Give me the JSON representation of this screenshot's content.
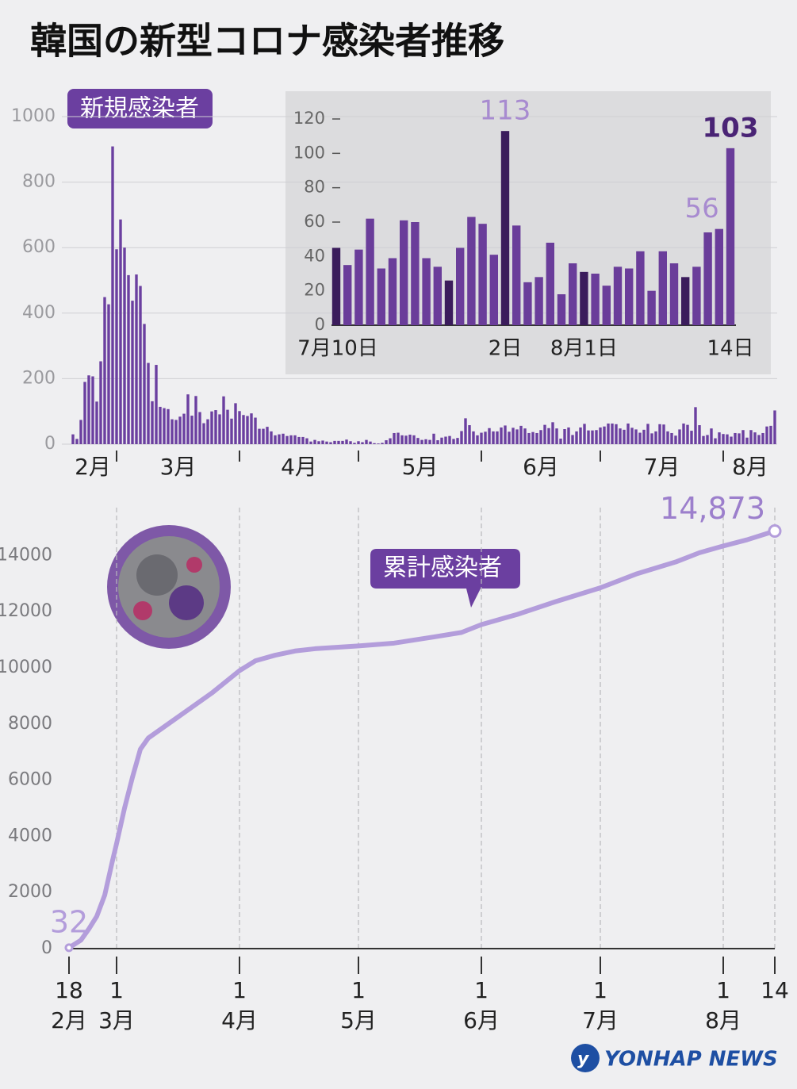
{
  "title": "韓国の新型コロナ感染者推移",
  "source": "YONHAP NEWS",
  "chart_data": [
    {
      "type": "bar",
      "label": "新規感染者",
      "color": "#6b3fa0",
      "x": [
        "02-19",
        "02-20",
        "02-21",
        "02-22",
        "02-23",
        "02-24",
        "02-25",
        "02-26",
        "02-27",
        "02-28",
        "02-29",
        "03-01",
        "03-02",
        "03-03",
        "03-04",
        "03-05",
        "03-06",
        "03-07",
        "03-08",
        "03-09",
        "03-10",
        "03-11",
        "03-12",
        "03-13",
        "03-14",
        "03-15",
        "03-16",
        "03-17",
        "03-18",
        "03-19",
        "03-20",
        "03-21",
        "03-22",
        "03-23",
        "03-24",
        "03-25",
        "03-26",
        "03-27",
        "03-28",
        "03-29",
        "03-30",
        "03-31",
        "04-01",
        "04-02",
        "04-03",
        "04-04",
        "04-05",
        "04-06",
        "04-07",
        "04-08",
        "04-09",
        "04-10",
        "04-11",
        "04-12",
        "04-13",
        "04-14",
        "04-15",
        "04-16",
        "04-17",
        "04-18",
        "04-19",
        "04-20",
        "04-21",
        "04-22",
        "04-23",
        "04-24",
        "04-25",
        "04-26",
        "04-27",
        "04-28",
        "04-29",
        "04-30",
        "05-01",
        "05-02",
        "05-03",
        "05-04",
        "05-05",
        "05-06",
        "05-07",
        "05-08",
        "05-09",
        "05-10",
        "05-11",
        "05-12",
        "05-13",
        "05-14",
        "05-15",
        "05-16",
        "05-17",
        "05-18",
        "05-19",
        "05-20",
        "05-21",
        "05-22",
        "05-23",
        "05-24",
        "05-25",
        "05-26",
        "05-27",
        "05-28",
        "05-29",
        "05-30",
        "05-31",
        "06-01",
        "06-02",
        "06-03",
        "06-04",
        "06-05",
        "06-06",
        "06-07",
        "06-08",
        "06-09",
        "06-10",
        "06-11",
        "06-12",
        "06-13",
        "06-14",
        "06-15",
        "06-16",
        "06-17",
        "06-18",
        "06-19",
        "06-20",
        "06-21",
        "06-22",
        "06-23",
        "06-24",
        "06-25",
        "06-26",
        "06-27",
        "06-28",
        "06-29",
        "06-30",
        "07-01",
        "07-02",
        "07-03",
        "07-04",
        "07-05",
        "07-06",
        "07-07",
        "07-08",
        "07-09",
        "07-10",
        "07-11",
        "07-12",
        "07-13",
        "07-14",
        "07-15",
        "07-16",
        "07-17",
        "07-18",
        "07-19",
        "07-20",
        "07-21",
        "07-22",
        "07-23",
        "07-24",
        "07-25",
        "07-26",
        "07-27",
        "07-28",
        "07-29",
        "07-30",
        "07-31",
        "08-01",
        "08-02",
        "08-03",
        "08-04",
        "08-05",
        "08-06",
        "08-07",
        "08-08",
        "08-09",
        "08-10",
        "08-11",
        "08-12",
        "08-13",
        "08-14"
      ],
      "values": [
        30,
        16,
        74,
        190,
        210,
        207,
        130,
        253,
        449,
        427,
        909,
        595,
        686,
        600,
        516,
        438,
        518,
        483,
        367,
        248,
        131,
        242,
        114,
        110,
        107,
        76,
        74,
        84,
        93,
        152,
        87,
        147,
        98,
        64,
        76,
        100,
        104,
        91,
        146,
        105,
        78,
        125,
        101,
        89,
        86,
        94,
        81,
        47,
        47,
        53,
        39,
        27,
        30,
        32,
        25,
        27,
        27,
        22,
        22,
        18,
        8,
        13,
        9,
        11,
        8,
        6,
        10,
        10,
        10,
        14,
        9,
        4,
        9,
        6,
        13,
        8,
        3,
        2,
        4,
        12,
        18,
        34,
        35,
        27,
        26,
        29,
        27,
        19,
        13,
        15,
        13,
        32,
        12,
        20,
        23,
        25,
        16,
        19,
        40,
        79,
        58,
        39,
        27,
        35,
        38,
        49,
        39,
        39,
        51,
        57,
        38,
        50,
        45,
        56,
        48,
        34,
        37,
        34,
        43,
        59,
        49,
        67,
        48,
        17,
        46,
        51,
        28,
        39,
        51,
        62,
        42,
        42,
        43,
        51,
        54,
        63,
        63,
        61,
        48,
        44,
        63,
        50,
        45,
        35,
        44,
        62,
        33,
        39,
        61,
        60,
        39,
        34,
        26,
        45,
        63,
        59,
        41,
        113,
        58,
        25,
        28,
        48,
        18,
        36,
        31,
        30,
        23,
        34,
        33,
        43,
        20,
        43,
        36,
        28,
        34,
        54,
        56,
        103
      ],
      "xlim": [
        "02-18",
        "08-14"
      ],
      "xticks": [
        "03-01",
        "04-01",
        "05-01",
        "06-01",
        "07-01",
        "08-01"
      ],
      "month_labels": [
        "2月",
        "3月",
        "4月",
        "5月",
        "6月",
        "7月",
        "8月"
      ],
      "ylim": [
        0,
        1000
      ],
      "yticks": [
        0,
        200,
        400,
        600,
        800,
        1000
      ],
      "grid": true
    },
    {
      "type": "bar",
      "categories": [
        "7月10日",
        null,
        null,
        null,
        null,
        null,
        null,
        null,
        null,
        null,
        null,
        null,
        null,
        null,
        null,
        "2日",
        null,
        null,
        null,
        null,
        null,
        null,
        "8月1日",
        null,
        null,
        null,
        null,
        null,
        null,
        null,
        null,
        null,
        null,
        null,
        null,
        "14日"
      ],
      "values": [
        45,
        35,
        44,
        62,
        33,
        39,
        61,
        60,
        39,
        34,
        26,
        45,
        63,
        59,
        41,
        113,
        58,
        25,
        28,
        48,
        18,
        36,
        31,
        30,
        23,
        34,
        33,
        43,
        20,
        43,
        36,
        28,
        34,
        54,
        56,
        103
      ],
      "colors": [
        "#3b1c5c",
        "#6a3d9a",
        "#6a3d9a",
        "#6a3d9a",
        "#6a3d9a",
        "#6a3d9a",
        "#6a3d9a",
        "#6a3d9a",
        "#6a3d9a",
        "#6a3d9a",
        "#3b1c5c",
        "#6a3d9a",
        "#6a3d9a",
        "#6a3d9a",
        "#6a3d9a",
        "#3b1c5c",
        "#6a3d9a",
        "#6a3d9a",
        "#6a3d9a",
        "#6a3d9a",
        "#6a3d9a",
        "#6a3d9a",
        "#3b1c5c",
        "#6a3d9a",
        "#6a3d9a",
        "#6a3d9a",
        "#6a3d9a",
        "#6a3d9a",
        "#6a3d9a",
        "#6a3d9a",
        "#6a3d9a",
        "#3b1c5c",
        "#6a3d9a",
        "#6a3d9a",
        "#6a3d9a",
        "#6a3d9a"
      ],
      "label_colors": [
        null,
        null,
        null,
        null,
        null,
        null,
        null,
        null,
        null,
        null,
        null,
        null,
        null,
        null,
        null,
        "#a88bd0",
        null,
        null,
        null,
        null,
        null,
        null,
        null,
        null,
        null,
        null,
        null,
        null,
        null,
        null,
        null,
        null,
        null,
        null,
        "#a88bd0",
        "#4a2475"
      ],
      "ylim": [
        0,
        120
      ],
      "yticks": [
        0,
        20,
        40,
        60,
        80,
        100,
        120
      ]
    },
    {
      "type": "line",
      "label": "累計感染者",
      "color": "#b39ddb",
      "x": [
        "02-18",
        "02-21",
        "02-23",
        "02-25",
        "02-27",
        "02-29",
        "03-01",
        "03-03",
        "03-05",
        "03-07",
        "03-09",
        "03-12",
        "03-15",
        "03-20",
        "03-25",
        "04-01",
        "04-05",
        "04-10",
        "04-15",
        "04-20",
        "05-01",
        "05-10",
        "05-15",
        "05-20",
        "05-27",
        "06-01",
        "06-10",
        "06-20",
        "07-01",
        "07-10",
        "07-20",
        "07-26",
        "08-01",
        "08-07",
        "08-14"
      ],
      "values": [
        32,
        300,
        700,
        1150,
        1900,
        3150,
        3740,
        5000,
        6100,
        7100,
        7500,
        7800,
        8100,
        8600,
        9100,
        9900,
        10250,
        10450,
        10600,
        10680,
        10780,
        10880,
        10990,
        11100,
        11260,
        11540,
        11900,
        12370,
        12850,
        13340,
        13770,
        14100,
        14340,
        14560,
        14873
      ],
      "value_labels": [
        "32",
        null,
        null,
        null,
        null,
        null,
        null,
        null,
        null,
        null,
        null,
        null,
        null,
        null,
        null,
        null,
        null,
        null,
        null,
        null,
        null,
        null,
        null,
        null,
        null,
        null,
        null,
        null,
        null,
        null,
        null,
        null,
        null,
        null,
        "14,873"
      ],
      "xlim": [
        "02-18",
        "08-14"
      ],
      "xticks": [
        {
          "value": "02-18",
          "label": "18",
          "sublabel": "2月"
        },
        {
          "value": "03-01",
          "label": "1",
          "sublabel": "3月"
        },
        {
          "value": "04-01",
          "label": "1",
          "sublabel": "4月"
        },
        {
          "value": "05-01",
          "label": "1",
          "sublabel": "5月"
        },
        {
          "value": "06-01",
          "label": "1",
          "sublabel": "6月"
        },
        {
          "value": "07-01",
          "label": "1",
          "sublabel": "7月"
        },
        {
          "value": "08-01",
          "label": "1",
          "sublabel": "8月"
        },
        {
          "value": "08-14",
          "label": "14"
        }
      ],
      "ylim": [
        0,
        15000
      ],
      "yticks": [
        0,
        2000,
        4000,
        6000,
        8000,
        10000,
        12000,
        14000
      ],
      "grid": true
    }
  ]
}
